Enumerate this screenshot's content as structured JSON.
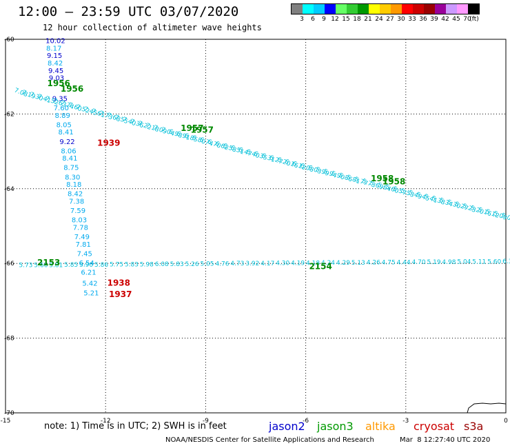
{
  "header": {
    "title": "12:00 — 23:59 UTC 03/07/2020",
    "subtitle": "12 hour collection of altimeter wave heights"
  },
  "legend": {
    "colors": [
      "#808080",
      "#00ffff",
      "#00ccff",
      "#0000ff",
      "#66ff66",
      "#33cc33",
      "#009900",
      "#ffff00",
      "#ffcc00",
      "#ff9900",
      "#ff0000",
      "#cc0000",
      "#990000",
      "#990099",
      "#cc99ff",
      "#ff99ff",
      "#000000"
    ],
    "labels": [
      "3",
      "6",
      "9",
      "12",
      "15",
      "18",
      "21",
      "24",
      "27",
      "30",
      "33",
      "36",
      "39",
      "42",
      "45",
      "70",
      "(ft)"
    ]
  },
  "axes": {
    "x_ticks": [
      "-15",
      "-12",
      "-9",
      "-6",
      "-3",
      "0"
    ],
    "y_ticks": [
      "-60",
      "-62",
      "-64",
      "-66",
      "-68",
      "-70"
    ]
  },
  "note": "note:  1) Time is in UTC; 2) SWH is in feet",
  "satellites": [
    {
      "name": "jason2",
      "color": "#0000cc"
    },
    {
      "name": "jason3",
      "color": "#009900"
    },
    {
      "name": "altika",
      "color": "#ff9900"
    },
    {
      "name": "cryosat",
      "color": "#cc0000"
    },
    {
      "name": "s3a",
      "color": "#990000"
    }
  ],
  "credit": "NOAA/NESDIS Center for Satellite Applications and Research",
  "credit_time": "Mar  8 12:27:40 UTC 2020",
  "vertical_track": [
    {
      "lon": -13.8,
      "lat": -60.1,
      "v": "10.02",
      "c": "#0000cc"
    },
    {
      "lon": -13.78,
      "lat": -60.3,
      "v": "8.17",
      "c": "#00aaee"
    },
    {
      "lon": -13.76,
      "lat": -60.5,
      "v": "9.15",
      "c": "#0000cc"
    },
    {
      "lon": -13.74,
      "lat": -60.7,
      "v": "8.42",
      "c": "#00aaee"
    },
    {
      "lon": -13.72,
      "lat": -60.9,
      "v": "9.45",
      "c": "#0000cc"
    },
    {
      "lon": -13.7,
      "lat": -61.1,
      "v": "9.03",
      "c": "#0000cc"
    },
    {
      "lon": -13.6,
      "lat": -61.65,
      "v": "9.35",
      "c": "#0000cc"
    },
    {
      "lon": -13.56,
      "lat": -61.9,
      "v": "7.60",
      "c": "#00aaee"
    },
    {
      "lon": -13.52,
      "lat": -62.1,
      "v": "8.89",
      "c": "#00aaee"
    },
    {
      "lon": -13.48,
      "lat": -62.35,
      "v": "8.05",
      "c": "#00aaee"
    },
    {
      "lon": -13.42,
      "lat": -62.55,
      "v": "8.41",
      "c": "#00aaee"
    },
    {
      "lon": -13.38,
      "lat": -62.8,
      "v": "9.22",
      "c": "#0000cc"
    },
    {
      "lon": -13.34,
      "lat": -63.05,
      "v": "8.06",
      "c": "#00aaee"
    },
    {
      "lon": -13.3,
      "lat": -63.25,
      "v": "8.41",
      "c": "#00aaee"
    },
    {
      "lon": -13.26,
      "lat": -63.5,
      "v": "8.75",
      "c": "#00aaee"
    },
    {
      "lon": -13.22,
      "lat": -63.75,
      "v": "8.30",
      "c": "#00aaee"
    },
    {
      "lon": -13.18,
      "lat": -63.95,
      "v": "8.18",
      "c": "#00aaee"
    },
    {
      "lon": -13.14,
      "lat": -64.2,
      "v": "8.42",
      "c": "#00aaee"
    },
    {
      "lon": -13.1,
      "lat": -64.4,
      "v": "7.38",
      "c": "#00aaee"
    },
    {
      "lon": -13.06,
      "lat": -64.65,
      "v": "7.59",
      "c": "#00aaee"
    },
    {
      "lon": -13.02,
      "lat": -64.9,
      "v": "8.03",
      "c": "#00aaee"
    },
    {
      "lon": -12.98,
      "lat": -65.1,
      "v": "7.78",
      "c": "#00aaee"
    },
    {
      "lon": -12.94,
      "lat": -65.35,
      "v": "7.49",
      "c": "#00aaee"
    },
    {
      "lon": -12.9,
      "lat": -65.55,
      "v": "7.81",
      "c": "#00aaee"
    },
    {
      "lon": -12.86,
      "lat": -65.8,
      "v": "7.45",
      "c": "#00aaee"
    },
    {
      "lon": -12.8,
      "lat": -66.05,
      "v": "6.54",
      "c": "#00aaee"
    },
    {
      "lon": -12.74,
      "lat": -66.3,
      "v": "6.21",
      "c": "#00aaee"
    },
    {
      "lon": -12.7,
      "lat": -66.6,
      "v": "5.42",
      "c": "#00aaee"
    },
    {
      "lon": -12.66,
      "lat": -66.85,
      "v": "5.21",
      "c": "#00aaee"
    }
  ],
  "descending_track": [
    "7.08",
    "7.19",
    "7.30",
    "7.41",
    "7.52",
    "7.63",
    "7.74",
    "7.60",
    "7.52",
    "7.45",
    "7.61",
    "7.73",
    "7.68",
    "7.55",
    "7.40",
    "7.36",
    "7.22",
    "7.18",
    "7.09",
    "7.04",
    "6.98",
    "6.91",
    "6.85",
    "6.80",
    "6.74",
    "6.70",
    "6.62",
    "6.58",
    "6.51",
    "6.47",
    "6.40",
    "6.35",
    "6.31",
    "6.27",
    "6.20",
    "6.16",
    "6.12",
    "6.08",
    "6.03",
    "5.99",
    "5.94",
    "5.90",
    "5.86",
    "5.81",
    "5.77",
    "5.73",
    "5.69",
    "5.64",
    "5.60",
    "5.57",
    "5.53",
    "5.49",
    "5.45",
    "5.41",
    "5.38",
    "5.34",
    "5.30",
    "5.27",
    "5.23",
    "5.20",
    "5.16",
    "5.12",
    "5.09",
    "5.05"
  ],
  "horizontal_track": [
    "5.73",
    "5.66",
    "5.81",
    "5.85",
    "5.90",
    "5.86",
    "5.75",
    "5.83",
    "5.98",
    "6.08",
    "5.83",
    "5.26",
    "5.05",
    "4.76",
    "4.73",
    "3.92",
    "4.17",
    "4.30",
    "4.19",
    "4.18",
    "4.24",
    "4.29",
    "5.13",
    "4.26",
    "4.75",
    "4.44",
    "4.70",
    "5.19",
    "4.98",
    "5.04",
    "5.11",
    "5.60",
    "6.3"
  ],
  "time_labels": [
    {
      "lon": -13.75,
      "lat": -61.25,
      "t": "1956",
      "c": "#008800"
    },
    {
      "lon": -13.35,
      "lat": -61.4,
      "t": "1956",
      "c": "#008800"
    },
    {
      "lon": -9.75,
      "lat": -62.45,
      "t": "1957",
      "c": "#008800"
    },
    {
      "lon": -9.45,
      "lat": -62.5,
      "t": "1957",
      "c": "#008800"
    },
    {
      "lon": -4.05,
      "lat": -63.8,
      "t": "1958",
      "c": "#008800"
    },
    {
      "lon": -3.7,
      "lat": -63.88,
      "t": "1958",
      "c": "#008800"
    },
    {
      "lon": -12.25,
      "lat": -62.85,
      "t": "1939",
      "c": "#cc0000"
    },
    {
      "lon": -14.05,
      "lat": -66.05,
      "t": "2153",
      "c": "#008800"
    },
    {
      "lon": -5.9,
      "lat": -66.15,
      "t": "2154",
      "c": "#008800"
    },
    {
      "lon": -11.95,
      "lat": -66.6,
      "t": "1938",
      "c": "#cc0000"
    },
    {
      "lon": -11.9,
      "lat": -66.9,
      "t": "1937",
      "c": "#cc0000"
    }
  ]
}
